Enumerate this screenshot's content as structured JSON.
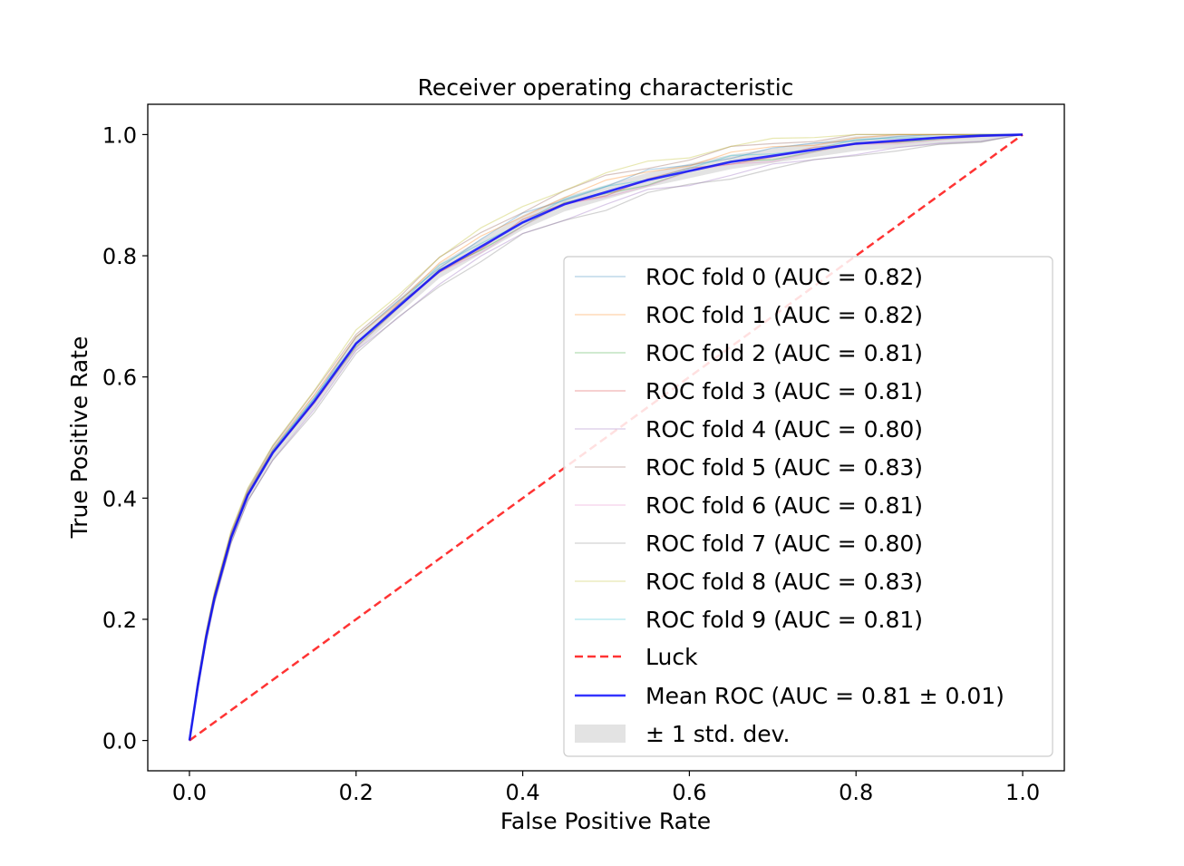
{
  "chart_data": {
    "type": "line",
    "title": "Receiver operating characteristic",
    "xlabel": "False Positive Rate",
    "ylabel": "True Positive Rate",
    "xlim": [
      -0.05,
      1.05
    ],
    "ylim": [
      -0.05,
      1.05
    ],
    "xticks": [
      "0.0",
      "0.2",
      "0.4",
      "0.6",
      "0.8",
      "1.0"
    ],
    "yticks": [
      "0.0",
      "0.2",
      "0.4",
      "0.6",
      "0.8",
      "1.0"
    ],
    "grid": false,
    "legend_position": "lower-right",
    "mean_curve": {
      "x": [
        0,
        0.01,
        0.02,
        0.03,
        0.05,
        0.07,
        0.1,
        0.15,
        0.2,
        0.25,
        0.3,
        0.35,
        0.4,
        0.45,
        0.5,
        0.55,
        0.6,
        0.65,
        0.7,
        0.75,
        0.8,
        0.85,
        0.9,
        0.95,
        1.0
      ],
      "y": [
        0,
        0.09,
        0.17,
        0.235,
        0.335,
        0.405,
        0.475,
        0.56,
        0.655,
        0.715,
        0.775,
        0.815,
        0.855,
        0.885,
        0.905,
        0.925,
        0.94,
        0.955,
        0.965,
        0.975,
        0.985,
        0.99,
        0.995,
        0.998,
        1.0
      ]
    },
    "std_dev": 0.012,
    "series": [
      {
        "name": "ROC fold 0 (AUC = 0.82)",
        "color": "#1f77b4",
        "offset": 0.008
      },
      {
        "name": "ROC fold 1 (AUC = 0.82)",
        "color": "#ff7f0e",
        "offset": 0.01
      },
      {
        "name": "ROC fold 2 (AUC = 0.81)",
        "color": "#2ca02c",
        "offset": -0.002
      },
      {
        "name": "ROC fold 3 (AUC = 0.81)",
        "color": "#d62728",
        "offset": 0.0
      },
      {
        "name": "ROC fold 4 (AUC = 0.80)",
        "color": "#9467bd",
        "offset": -0.015
      },
      {
        "name": "ROC fold 5 (AUC = 0.83)",
        "color": "#8c564b",
        "offset": 0.016
      },
      {
        "name": "ROC fold 6 (AUC = 0.81)",
        "color": "#e377c2",
        "offset": -0.004
      },
      {
        "name": "ROC fold 7 (AUC = 0.80)",
        "color": "#7f7f7f",
        "offset": -0.018
      },
      {
        "name": "ROC fold 8 (AUC = 0.83)",
        "color": "#bcbd22",
        "offset": 0.02
      },
      {
        "name": "ROC fold 9 (AUC = 0.81)",
        "color": "#17becf",
        "offset": 0.004
      }
    ],
    "luck": {
      "name": "Luck",
      "color": "#ff0000",
      "x": [
        0,
        1
      ],
      "y": [
        0,
        1
      ]
    },
    "mean": {
      "name": "Mean ROC (AUC = 0.81 ± 0.01)",
      "color": "#0000ff"
    },
    "band": {
      "name": "± 1 std. dev.",
      "color": "#cccccc"
    }
  }
}
